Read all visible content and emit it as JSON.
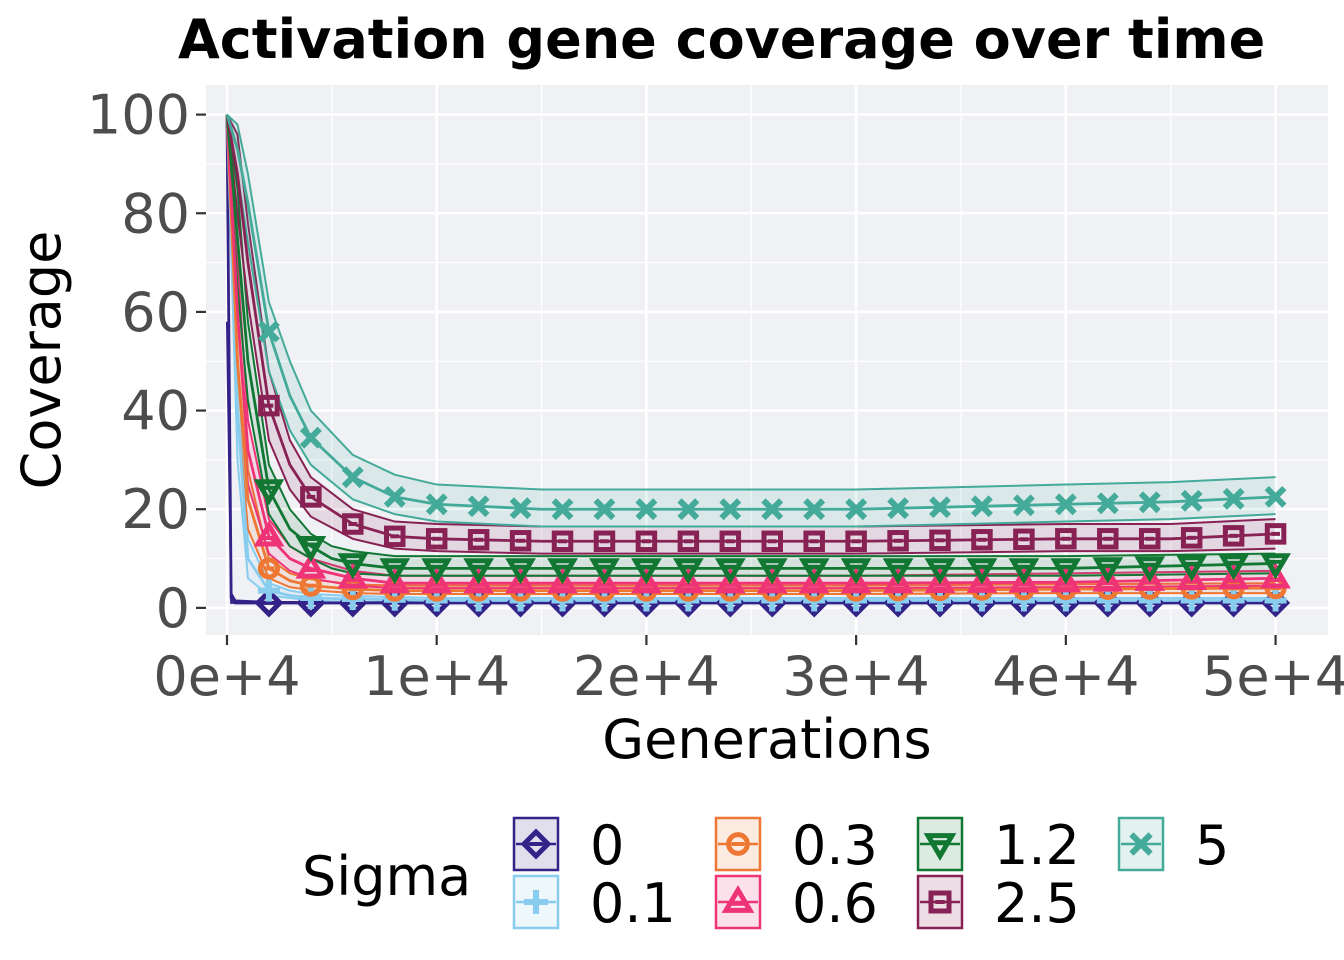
{
  "chart_data": {
    "type": "line",
    "title": "Activation gene coverage over time",
    "xlabel": "Generations",
    "ylabel": "Coverage",
    "xlim": [
      -1000,
      52500
    ],
    "ylim": [
      -5.5,
      106
    ],
    "x_ticks": [
      0,
      10000,
      20000,
      30000,
      40000,
      50000
    ],
    "x_tick_labels": [
      "0e+4",
      "1e+4",
      "2e+4",
      "3e+4",
      "4e+4",
      "5e+4"
    ],
    "y_ticks": [
      0,
      20,
      40,
      60,
      80,
      100
    ],
    "y_tick_labels": [
      "0",
      "20",
      "40",
      "60",
      "80",
      "100"
    ],
    "grid": true,
    "legend": {
      "title": "Sigma",
      "position": "bottom"
    },
    "series": [
      {
        "name": "0",
        "color": "#332288",
        "marker": "diamond",
        "x": [
          0,
          200,
          400,
          2000,
          4000,
          6000,
          8000,
          10000,
          15000,
          20000,
          30000,
          40000,
          50000
        ],
        "values": [
          100,
          2,
          1,
          1,
          1,
          1,
          1,
          1,
          1,
          1,
          1,
          1,
          1
        ],
        "lower": [
          58,
          1,
          1,
          1,
          1,
          1,
          1,
          1,
          1,
          1,
          1,
          1,
          1
        ],
        "upper": [
          100,
          3,
          1.5,
          1.2,
          1.2,
          1.2,
          1.2,
          1.2,
          1.2,
          1.2,
          1.2,
          1.2,
          1.2
        ]
      },
      {
        "name": "0.1",
        "color": "#88CCEE",
        "marker": "plus",
        "x": [
          0,
          500,
          1000,
          2000,
          3000,
          4000,
          6000,
          10000,
          20000,
          30000,
          40000,
          50000
        ],
        "values": [
          100,
          40,
          10,
          3.5,
          2.5,
          2,
          1.8,
          1.5,
          1.5,
          1.5,
          1.5,
          1.5
        ],
        "lower": [
          100,
          30,
          6,
          2.5,
          2,
          1.5,
          1.2,
          1,
          1,
          1,
          1,
          1
        ],
        "upper": [
          100,
          50,
          14,
          5,
          3.5,
          2.8,
          2.4,
          2,
          2,
          2,
          2,
          2
        ]
      },
      {
        "name": "0.3",
        "color": "#EE7733",
        "marker": "circle",
        "x": [
          0,
          500,
          1000,
          2000,
          3000,
          4000,
          6000,
          8000,
          10000,
          20000,
          30000,
          40000,
          50000
        ],
        "values": [
          100,
          50,
          22,
          8,
          5.5,
          4.5,
          3.8,
          3.5,
          3.5,
          3.5,
          3.5,
          3.8,
          4
        ],
        "lower": [
          100,
          40,
          16,
          6,
          4.2,
          3.6,
          3,
          2.8,
          2.8,
          2.8,
          2.8,
          3,
          3
        ],
        "upper": [
          100,
          60,
          28,
          10,
          7,
          5.8,
          4.8,
          4.5,
          4.5,
          4.5,
          4.5,
          4.8,
          5
        ]
      },
      {
        "name": "0.6",
        "color": "#EE3377",
        "marker": "triangle",
        "x": [
          0,
          500,
          1000,
          2000,
          3000,
          4000,
          6000,
          8000,
          10000,
          20000,
          30000,
          40000,
          50000
        ],
        "values": [
          100,
          60,
          32,
          14.5,
          10,
          8,
          6,
          5,
          5,
          5,
          5,
          5.2,
          6
        ],
        "lower": [
          100,
          50,
          25,
          11,
          7.5,
          6,
          4.5,
          4,
          4,
          4,
          4,
          4.2,
          4.5
        ],
        "upper": [
          100,
          70,
          38,
          18,
          12.5,
          10,
          7.5,
          6.5,
          6.5,
          6.5,
          6.5,
          7,
          7.5
        ]
      },
      {
        "name": "1.2",
        "color": "#117733",
        "marker": "triangle-down",
        "x": [
          0,
          500,
          1000,
          2000,
          3000,
          4000,
          5000,
          6000,
          8000,
          10000,
          20000,
          30000,
          40000,
          50000
        ],
        "values": [
          100,
          75,
          50,
          24,
          16,
          12.5,
          10,
          9,
          8,
          8,
          8,
          8,
          8,
          9
        ],
        "lower": [
          100,
          65,
          42,
          19,
          12.5,
          10,
          8,
          7,
          6.5,
          6.5,
          6.5,
          6.5,
          6.5,
          7
        ],
        "upper": [
          100,
          85,
          58,
          29,
          20,
          15,
          12.5,
          11.5,
          10.5,
          10.5,
          10.5,
          10.5,
          10.5,
          11
        ]
      },
      {
        "name": "2.5",
        "color": "#882255",
        "marker": "square",
        "x": [
          0,
          500,
          1000,
          2000,
          3000,
          4000,
          6000,
          8000,
          10000,
          15000,
          20000,
          30000,
          40000,
          45000,
          50000
        ],
        "values": [
          100,
          88,
          70,
          41,
          29,
          22.5,
          17,
          14.5,
          14,
          13.5,
          13.5,
          13.5,
          14,
          14,
          15
        ],
        "lower": [
          100,
          80,
          62,
          34,
          24,
          18.5,
          14,
          12,
          11.5,
          11,
          11,
          11,
          11.5,
          11.5,
          12
        ],
        "upper": [
          100,
          96,
          78,
          48,
          34,
          26.5,
          20,
          17.5,
          17,
          16.5,
          16.5,
          16.5,
          17,
          17,
          18
        ]
      },
      {
        "name": "5",
        "color": "#44AA99",
        "marker": "cross",
        "x": [
          0,
          500,
          1000,
          2000,
          3000,
          4000,
          6000,
          8000,
          10000,
          15000,
          20000,
          30000,
          40000,
          45000,
          50000
        ],
        "values": [
          100,
          93,
          82,
          56,
          43,
          34.5,
          26.5,
          22.5,
          21,
          20,
          20,
          20,
          21,
          21.5,
          22.5
        ],
        "lower": [
          100,
          88,
          74,
          48,
          36,
          29,
          22,
          19,
          17.5,
          16.5,
          16.5,
          16.5,
          17.5,
          18,
          19
        ],
        "upper": [
          100,
          98,
          88,
          62,
          50,
          40,
          31,
          27,
          25,
          24,
          24,
          24,
          25,
          25.5,
          26.5
        ]
      }
    ]
  }
}
